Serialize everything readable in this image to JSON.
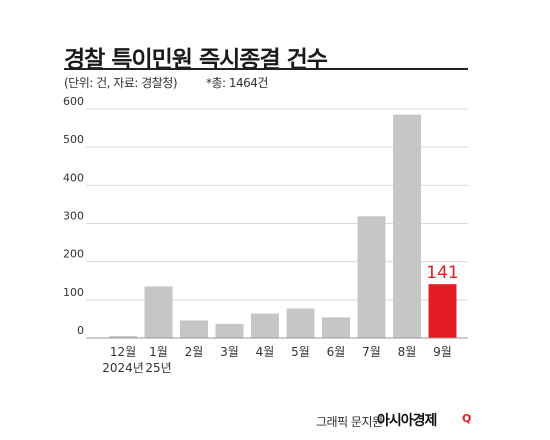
{
  "header": {
    "title": "경찰 특이민원 즉시종결 건수",
    "subtitle": "(단위: 건, 자료: 경찰청)",
    "note": "*총: 1464건"
  },
  "footer": {
    "credit": "그래픽 문지원",
    "brand": "아시아경제",
    "brand_mark": "Q"
  },
  "colors": {
    "bar": "#c6c6c6",
    "highlight": "#e41b23",
    "grid": "#d9d9d9",
    "text": "#333333"
  },
  "chart_data": {
    "type": "bar",
    "categories": [
      "12월",
      "1월",
      "2월",
      "3월",
      "4월",
      "5월",
      "6월",
      "7월",
      "8월",
      "9월"
    ],
    "category_sublabels": [
      "2024년",
      "25년",
      "",
      "",
      "",
      "",
      "",
      "",
      "",
      ""
    ],
    "values": [
      5,
      135,
      46,
      37,
      64,
      77,
      54,
      319,
      585,
      141
    ],
    "highlight_index": 9,
    "data_labels": [
      {
        "index": 9,
        "text": "141"
      }
    ],
    "ylim": [
      0,
      600
    ],
    "yticks": [
      0,
      100,
      200,
      300,
      400,
      500,
      600
    ],
    "grid": true,
    "title": "",
    "xlabel": "",
    "ylabel": ""
  }
}
